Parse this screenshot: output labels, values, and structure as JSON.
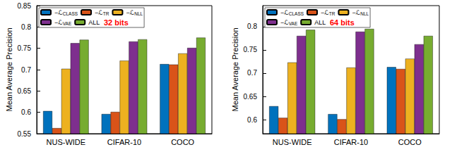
{
  "chart_data": [
    {
      "type": "bar",
      "y_label": "Mean Average Precision",
      "annotations": [
        {
          "text": "32 bits",
          "color": "#ff0000"
        }
      ],
      "categories": [
        "NUS-WIDE",
        "CIFAR-10",
        "COCO"
      ],
      "series": [
        {
          "name": "−ℒCLASS",
          "color": "#0072bd",
          "values": [
            0.603,
            0.596,
            0.713
          ]
        },
        {
          "name": "−ℒTR",
          "color": "#d95319",
          "values": [
            0.563,
            0.601,
            0.712
          ]
        },
        {
          "name": "−ℒNLL",
          "color": "#edb120",
          "values": [
            0.702,
            0.721,
            0.738
          ]
        },
        {
          "name": "−ℒVAE",
          "color": "#7e2f8e",
          "values": [
            0.762,
            0.766,
            0.751
          ]
        },
        {
          "name": "ALL",
          "color": "#77ac30",
          "values": [
            0.77,
            0.771,
            0.775
          ]
        }
      ],
      "ylim": [
        0.55,
        0.85
      ],
      "yticks": [
        0.55,
        0.6,
        0.65,
        0.7,
        0.75,
        0.8,
        0.85
      ],
      "grid": false,
      "legend": "upper left"
    },
    {
      "type": "bar",
      "y_label": "Mean Average Precision",
      "annotations": [
        {
          "text": "64 bits",
          "color": "#ff0000"
        }
      ],
      "categories": [
        "NUS-WIDE",
        "CIFAR-10",
        "COCO"
      ],
      "series": [
        {
          "name": "−ℒCLASS",
          "color": "#0072bd",
          "values": [
            0.629,
            0.612,
            0.713
          ]
        },
        {
          "name": "−ℒTR",
          "color": "#d95319",
          "values": [
            0.604,
            0.601,
            0.709
          ]
        },
        {
          "name": "−ℒNLL",
          "color": "#edb120",
          "values": [
            0.723,
            0.712,
            0.731
          ]
        },
        {
          "name": "−ℒVAE",
          "color": "#7e2f8e",
          "values": [
            0.78,
            0.789,
            0.762
          ]
        },
        {
          "name": "ALL",
          "color": "#77ac30",
          "values": [
            0.793,
            0.795,
            0.78
          ]
        }
      ],
      "ylim": [
        0.57,
        0.845
      ],
      "yticks": [
        0.6,
        0.65,
        0.7,
        0.75,
        0.8
      ],
      "grid": false,
      "legend": "upper left"
    }
  ]
}
